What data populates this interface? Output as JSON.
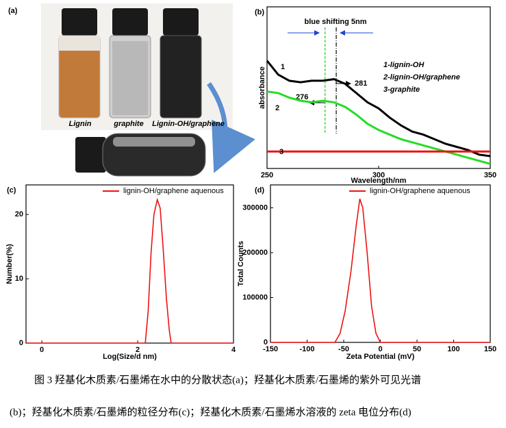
{
  "panel_a": {
    "panel": "(a)",
    "labels": [
      "Lignin",
      "graphite",
      "Lignin-OH/graphene"
    ]
  },
  "chart_data": [
    {
      "type": "line",
      "panel": "(b)",
      "title": "blue shifting 5nm",
      "x_label": "Wavelength/nm",
      "y_label": "absorbance",
      "x": [
        250,
        255,
        260,
        265,
        270,
        275,
        280,
        285,
        290,
        295,
        300,
        305,
        310,
        315,
        320,
        325,
        330,
        335,
        340,
        345,
        350
      ],
      "xlim": [
        250,
        350
      ],
      "xticks": [
        250,
        300,
        350
      ],
      "ylim": [
        -0.05,
        1
      ],
      "yticks": [],
      "series": [
        {
          "name": "1-lignin-OH",
          "label": "1",
          "color": "#000000",
          "values": [
            0.65,
            0.56,
            0.52,
            0.51,
            0.52,
            0.52,
            0.53,
            0.5,
            0.44,
            0.38,
            0.34,
            0.28,
            0.23,
            0.19,
            0.17,
            0.14,
            0.11,
            0.09,
            0.07,
            0.04,
            0.03
          ]
        },
        {
          "name": "2-lignin-OH/graphene",
          "label": "2",
          "color": "#22dd22",
          "values": [
            0.45,
            0.44,
            0.41,
            0.39,
            0.38,
            0.39,
            0.38,
            0.35,
            0.3,
            0.24,
            0.2,
            0.17,
            0.14,
            0.12,
            0.1,
            0.08,
            0.06,
            0.04,
            0.02,
            0.0,
            -0.02
          ]
        },
        {
          "name": "3-graphite",
          "label": "3",
          "color": "#ee1111",
          "values": [
            0.06,
            0.06,
            0.06,
            0.06,
            0.06,
            0.06,
            0.06,
            0.06,
            0.06,
            0.06,
            0.06,
            0.06,
            0.06,
            0.06,
            0.06,
            0.06,
            0.06,
            0.06,
            0.06,
            0.06,
            0.06
          ]
        }
      ],
      "vlines": [
        {
          "value": 276,
          "color": "#22cc22"
        },
        {
          "value": 281,
          "color": "#000000"
        }
      ]
    },
    {
      "type": "line",
      "panel": "(c)",
      "x_label": "Log(Size/d nm)",
      "y_label": "Number(%)",
      "x": [
        -0.33,
        2.16,
        2.22,
        2.28,
        2.34,
        2.41,
        2.47,
        2.53,
        2.6,
        2.66,
        2.7,
        4
      ],
      "xlim": [
        -0.33,
        4
      ],
      "xticks": [
        0,
        2,
        4
      ],
      "ylim": [
        0,
        24.6
      ],
      "yticks": [
        0,
        10,
        20
      ],
      "series": [
        {
          "name": "lignin-OH/graphene aquenous",
          "color": "#ee1111",
          "values": [
            0,
            0,
            5,
            14,
            20,
            22.3,
            21,
            15,
            7,
            2,
            0,
            0
          ]
        }
      ]
    },
    {
      "type": "line",
      "panel": "(d)",
      "x_label": "Zeta Potential (mV)",
      "y_label": "Total Counts",
      "x": [
        -150,
        -62,
        -55,
        -48,
        -40,
        -33,
        -28,
        -24,
        -18,
        -12,
        -6,
        0,
        150
      ],
      "xlim": [
        -150,
        150
      ],
      "xticks": [
        -150,
        -100,
        -50,
        0,
        50,
        100,
        150
      ],
      "ylim": [
        0,
        351000
      ],
      "yticks": [
        0,
        100000,
        200000,
        300000
      ],
      "series": [
        {
          "name": "lignin-OH/graphene aquenous",
          "color": "#ee1111",
          "values": [
            0,
            0,
            20000,
            70000,
            160000,
            260000,
            320000,
            300000,
            200000,
            80000,
            20000,
            0,
            0
          ]
        }
      ]
    }
  ],
  "caption": [
    "图 3 羟基化木质素/石墨烯在水中的分散状态(a)；羟基化木质素/石墨烯的紫外可见光谱",
    "(b)；羟基化木质素/石墨烯的粒径分布(c)；羟基化木质素/石墨烯水溶液的 zeta 电位分布(d)"
  ]
}
